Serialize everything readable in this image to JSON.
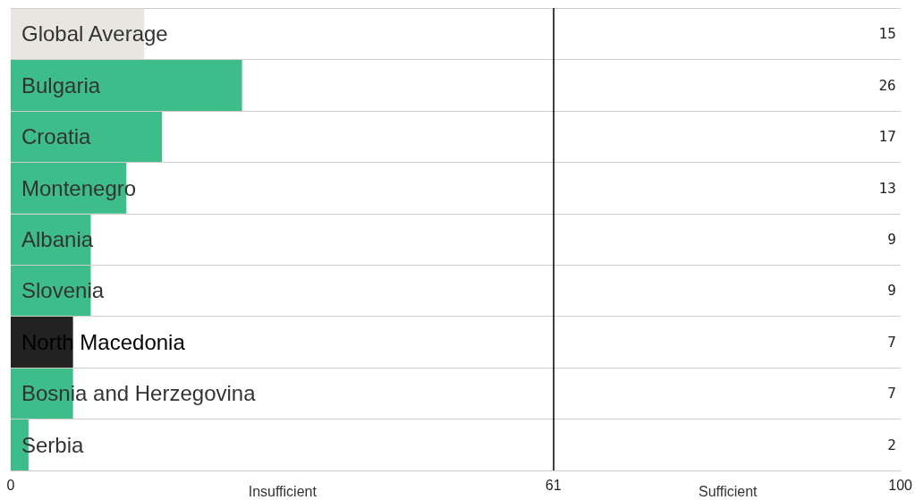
{
  "chart_data": {
    "type": "bar",
    "orientation": "horizontal",
    "categories": [
      "Global Average",
      "Bulgaria",
      "Croatia",
      "Montenegro",
      "Albania",
      "Slovenia",
      "North Macedonia",
      "Bosnia and Herzegovina",
      "Serbia"
    ],
    "values": [
      15,
      26,
      17,
      13,
      9,
      9,
      7,
      7,
      2
    ],
    "colors": [
      "#e8e6e1",
      "#3dbd8a",
      "#3dbd8a",
      "#3dbd8a",
      "#3dbd8a",
      "#3dbd8a",
      "#222222",
      "#3dbd8a",
      "#3dbd8a"
    ],
    "xlim": [
      0,
      100
    ],
    "xticks": [
      0,
      61,
      100
    ],
    "ref_lines": [
      {
        "axis": "x",
        "value": 61,
        "color": "#000000"
      }
    ],
    "annotations": [
      "Insufficient",
      "Sufficient"
    ],
    "data_labels": true,
    "grid": "y"
  }
}
